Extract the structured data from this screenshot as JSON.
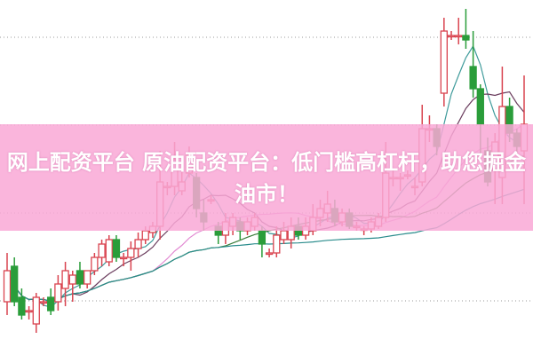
{
  "banner": {
    "title": "网上配资平台 原油配资平台：低门槛高杠杆，助您掘金油市！",
    "background_color": "#f9a8d6"
  },
  "chart_data": {
    "type": "candlestick",
    "title": "",
    "xlabel": "",
    "ylabel": "",
    "ylim": [
      0,
      40
    ],
    "grid": true,
    "grid_values": [
      35.8,
      25.9,
      16.0,
      6.1
    ],
    "up_color": "#d9434f",
    "down_color": "#2a9d3a",
    "candle_fields": [
      "open",
      "high",
      "low",
      "close"
    ],
    "candles": [
      [
        6.0,
        11.5,
        4.5,
        9.5
      ],
      [
        10,
        11,
        5.5,
        6
      ],
      [
        6.5,
        7.5,
        4,
        4.5
      ],
      [
        5,
        5.5,
        4,
        5
      ],
      [
        3.5,
        7,
        2.5,
        6.5
      ],
      [
        6,
        6.5,
        5.5,
        6
      ],
      [
        6.5,
        7.5,
        4.5,
        5
      ],
      [
        6,
        9,
        5,
        8
      ],
      [
        7.5,
        10.5,
        5.5,
        9.5
      ],
      [
        8,
        9.5,
        6,
        9
      ],
      [
        9.5,
        10.5,
        7.5,
        8
      ],
      [
        8,
        9.5,
        7.5,
        9.5
      ],
      [
        9.5,
        11.5,
        9,
        11
      ],
      [
        11,
        13,
        10,
        12.5
      ],
      [
        10.5,
        13.5,
        10,
        13
      ],
      [
        13,
        13.5,
        10.5,
        11
      ],
      [
        11,
        11.5,
        10,
        11
      ],
      [
        11,
        12.8,
        9.5,
        12
      ],
      [
        12,
        13.8,
        11,
        13
      ],
      [
        13,
        14.5,
        12.5,
        14
      ],
      [
        13.8,
        15,
        13.2,
        14.5
      ],
      [
        14.5,
        23,
        13,
        19.5
      ],
      [
        19,
        19.5,
        18,
        19
      ],
      [
        19,
        24,
        18,
        22
      ],
      [
        18.5,
        21.5,
        18,
        19.5
      ],
      [
        20.5,
        23.5,
        20,
        22.5
      ],
      [
        20,
        20.5,
        15.5,
        16.5
      ],
      [
        16,
        17.5,
        14,
        15
      ],
      [
        17.5,
        18,
        17,
        17.5
      ],
      [
        14.5,
        15,
        12.5,
        13.5
      ],
      [
        13.5,
        16,
        12.5,
        15
      ],
      [
        14.5,
        16,
        13.5,
        15.5
      ],
      [
        15,
        15.5,
        13,
        14
      ],
      [
        14,
        15.5,
        13.5,
        15
      ],
      [
        14.5,
        16,
        14,
        15.5
      ],
      [
        14,
        14.5,
        11,
        12.5
      ],
      [
        11.5,
        12,
        11,
        11.5
      ],
      [
        11.5,
        14.5,
        11,
        13.5
      ],
      [
        13,
        15,
        12.5,
        14
      ],
      [
        13,
        15.5,
        12,
        14.5
      ],
      [
        14.5,
        15.5,
        13,
        13.5
      ],
      [
        13.5,
        15.5,
        13,
        14.5
      ],
      [
        14,
        17,
        13.5,
        15.5
      ],
      [
        15.5,
        17.5,
        14.5,
        16.5
      ],
      [
        16,
        18.5,
        15,
        17
      ],
      [
        16.5,
        17.5,
        14.5,
        15
      ],
      [
        15,
        16.5,
        14.5,
        16
      ],
      [
        16,
        16.5,
        14.2,
        14.5
      ],
      [
        14.5,
        15,
        14,
        14.5
      ],
      [
        14.2,
        14.5,
        13.5,
        14.2
      ],
      [
        14.2,
        15.5,
        13.8,
        15
      ],
      [
        14.5,
        16,
        14.2,
        15.5
      ],
      [
        15.5,
        24,
        15,
        20.5
      ],
      [
        20,
        21,
        19,
        20
      ],
      [
        20,
        20.5,
        18.5,
        20
      ],
      [
        20.3,
        20.8,
        19.8,
        20.3
      ],
      [
        19,
        20,
        18,
        19
      ],
      [
        19.5,
        28.2,
        19,
        25.5
      ],
      [
        25.5,
        27,
        24,
        25.5
      ],
      [
        25.5,
        26,
        22.5,
        23.5
      ],
      [
        29.5,
        38,
        28,
        36.5
      ],
      [
        36,
        36.5,
        35.5,
        36
      ],
      [
        36,
        38,
        35,
        36
      ],
      [
        36,
        39,
        34.5,
        35.5
      ],
      [
        32.5,
        36.5,
        29,
        30
      ],
      [
        30,
        30.5,
        22.5,
        26
      ],
      [
        23,
        24.5,
        19,
        19.5
      ],
      [
        21,
        25,
        17,
        24
      ],
      [
        20,
        32.5,
        17,
        28
      ],
      [
        28,
        29,
        24,
        25
      ],
      [
        25,
        25.5,
        22.5,
        23.5
      ],
      [
        23,
        31.5,
        17,
        26
      ]
    ],
    "moving_averages": [
      {
        "period": 5,
        "color": "#3f9b9b"
      },
      {
        "period": 10,
        "color": "#6b3d5e"
      },
      {
        "period": 20,
        "color": "#e28ad2"
      },
      {
        "period": 30,
        "color": "#3a7d3a"
      },
      {
        "period": 60,
        "color": "#2a8c8c"
      }
    ]
  }
}
